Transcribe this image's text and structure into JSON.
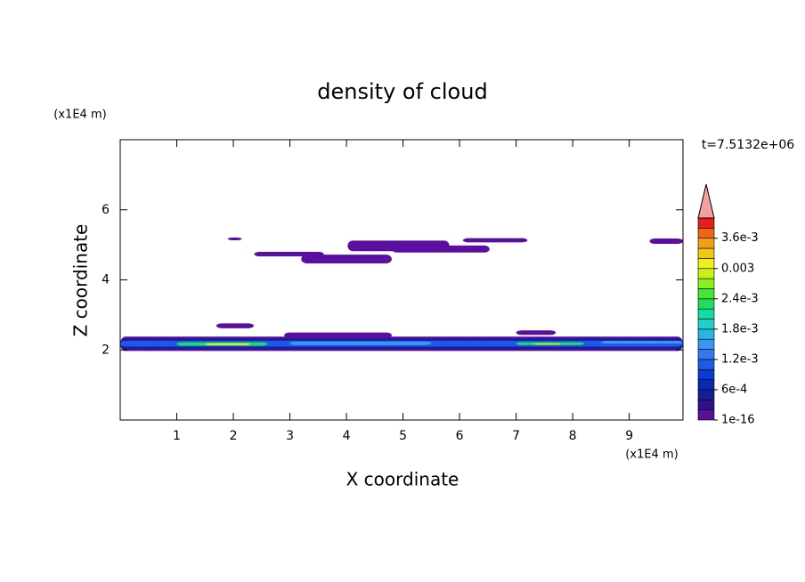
{
  "chart_data": {
    "type": "contour",
    "title": "density of cloud",
    "x_label": "X coordinate",
    "y_label": "Z coordinate",
    "x_unit": "(x1E4 m)",
    "y_unit": "(x1E4 m)",
    "annotation": "t=7.5132e+06",
    "xlim": [
      0,
      9.95
    ],
    "xticks": [
      1,
      2,
      3,
      4,
      5,
      6,
      7,
      8,
      9
    ],
    "ylim": [
      0,
      8
    ],
    "yticks": [
      2,
      4,
      6
    ],
    "colorbar": {
      "lim": [
        1e-16,
        0.004
      ],
      "ticks": [
        1e-16,
        {
          "value": 0.0006,
          "label": "6e-4"
        },
        {
          "value": 0.0012,
          "label": "1.2e-3"
        },
        {
          "value": 0.0018,
          "label": "1.8e-3"
        },
        {
          "value": 0.0024,
          "label": "2.4e-3"
        },
        0.003,
        {
          "value": 0.0036,
          "label": "3.6e-3"
        }
      ],
      "colors": [
        "#5a0fa0",
        "#2a1488",
        "#141e96",
        "#0a28b4",
        "#0a3cd2",
        "#1e5ae6",
        "#3278f0",
        "#3c96f0",
        "#28b4e6",
        "#1ed2c8",
        "#14dca0",
        "#1edc64",
        "#46e632",
        "#8cf01e",
        "#c8f014",
        "#f0f014",
        "#f0c814",
        "#f0a014",
        "#f06414",
        "#e61e1e"
      ],
      "extend_color": "#f4a0a0"
    },
    "cells": [
      {
        "x": [
          1.9,
          2.15
        ],
        "z": [
          5.13,
          5.21
        ],
        "value": 0.0001
      },
      {
        "x": [
          2.37,
          3.6
        ],
        "z": [
          4.67,
          4.8
        ],
        "value": 0.0001
      },
      {
        "x": [
          3.2,
          4.8
        ],
        "z": [
          4.47,
          4.72
        ],
        "value": 0.0001
      },
      {
        "x": [
          4.02,
          5.82
        ],
        "z": [
          4.82,
          5.12
        ],
        "value": 0.0001
      },
      {
        "x": [
          4.8,
          6.53
        ],
        "z": [
          4.78,
          4.98
        ],
        "value": 0.0001
      },
      {
        "x": [
          6.06,
          7.2
        ],
        "z": [
          5.07,
          5.19
        ],
        "value": 0.0001
      },
      {
        "x": [
          9.36,
          9.95
        ],
        "z": [
          5.03,
          5.18
        ],
        "value": 0.0001
      },
      {
        "x": [
          1.7,
          2.36
        ],
        "z": [
          2.62,
          2.76
        ],
        "value": 0.0001
      },
      {
        "x": [
          7.0,
          7.7
        ],
        "z": [
          2.43,
          2.56
        ],
        "value": 0.0001
      },
      {
        "x": [
          2.9,
          4.8
        ],
        "z": [
          2.34,
          2.5
        ],
        "value": 0.0001
      },
      {
        "x": [
          0,
          9.95
        ],
        "z": [
          1.97,
          2.38
        ],
        "value": 0.0001
      },
      {
        "x": [
          0,
          9.95
        ],
        "z": [
          2.02,
          2.33
        ],
        "value": 0.0003
      },
      {
        "x": [
          0,
          9.95
        ],
        "z": [
          2.06,
          2.3
        ],
        "value": 0.0007
      },
      {
        "x": [
          0,
          9.95
        ],
        "z": [
          2.1,
          2.26
        ],
        "value": 0.0011
      },
      {
        "x": [
          3.0,
          5.5
        ],
        "z": [
          2.14,
          2.24
        ],
        "value": 0.0016
      },
      {
        "x": [
          8.5,
          9.95
        ],
        "z": [
          2.18,
          2.26
        ],
        "value": 0.0016
      },
      {
        "x": [
          1.0,
          2.6
        ],
        "z": [
          2.12,
          2.22
        ],
        "value": 0.0023
      },
      {
        "x": [
          1.5,
          2.3
        ],
        "z": [
          2.14,
          2.19
        ],
        "value": 0.0031
      },
      {
        "x": [
          7.0,
          8.2
        ],
        "z": [
          2.14,
          2.22
        ],
        "value": 0.0023
      },
      {
        "x": [
          7.3,
          7.8
        ],
        "z": [
          2.15,
          2.19
        ],
        "value": 0.0029
      }
    ]
  }
}
